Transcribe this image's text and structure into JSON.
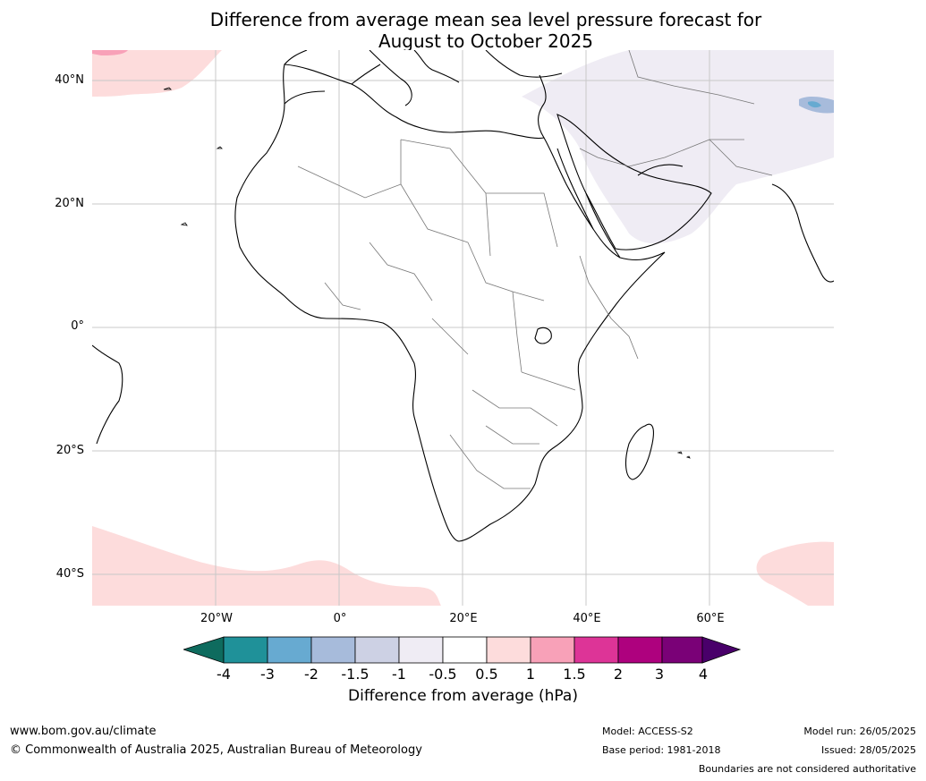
{
  "title_line1": "Difference from average mean sea level pressure forecast for",
  "title_line2": "August to October 2025",
  "lat_labels": [
    "40°N",
    "20°N",
    "0°",
    "20°S",
    "40°S"
  ],
  "lon_labels": [
    "20°W",
    "0°",
    "20°E",
    "40°E",
    "60°E"
  ],
  "colorbar": {
    "ticks": [
      "-4",
      "-3",
      "-2",
      "-1.5",
      "-1",
      "-0.5",
      "0.5",
      "1",
      "1.5",
      "2",
      "3",
      "4"
    ],
    "colors": [
      "#0e6b5e",
      "#1f9199",
      "#67aad1",
      "#a7bbdb",
      "#cdd1e4",
      "#efecf4",
      "#ffffff",
      "#fddcdc",
      "#f8a1b8",
      "#dd3497",
      "#ae017e",
      "#7a0177",
      "#49006a"
    ],
    "label": "Difference from average (hPa)"
  },
  "footer": {
    "url": "www.bom.gov.au/climate",
    "copyright": "© Commonwealth of Australia 2025, Australian Bureau of Meteorology",
    "model": "Model: ACCESS-S2",
    "base_period": "Base period: 1981-2018",
    "model_run": "Model run: 26/05/2025",
    "issued": "Issued: 28/05/2025",
    "disclaimer": "Boundaries are not considered authoritative"
  }
}
